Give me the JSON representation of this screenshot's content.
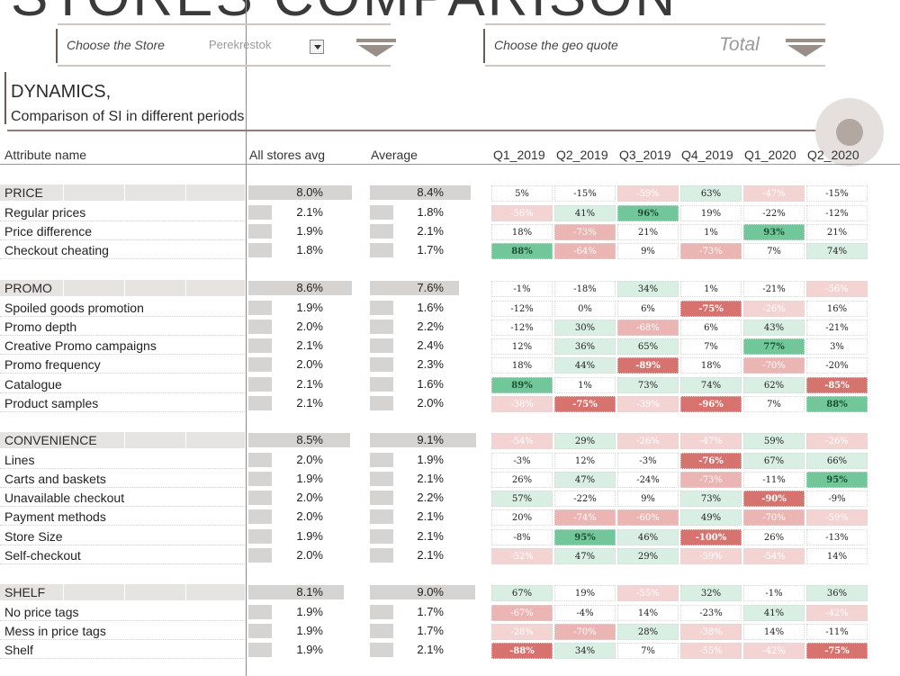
{
  "title": "STORES COMPARISON",
  "store_selector": {
    "label": "Choose the Store",
    "value": "Perekrestok"
  },
  "geo_selector": {
    "label": "Choose the geo quote",
    "value": "Total"
  },
  "heading": {
    "line1": "DYNAMICS,",
    "line2": "Comparison of SI in different periods"
  },
  "columns": {
    "attribute": "Attribute name",
    "all_stores": "All stores avg",
    "average": "Average",
    "periods": [
      "Q1_2019",
      "Q2_2019",
      "Q3_2019",
      "Q4_2019",
      "Q1_2020",
      "Q2_2020"
    ]
  },
  "colors": {
    "strong_neg": "#d6736f",
    "mid_neg": "#eab5b3",
    "light_neg": "#f3d4d3",
    "light_pos": "#d9efe4",
    "mid_pos": "#a9dbc0",
    "strong_pos": "#72c79a",
    "section_bg": "#e6e3e3",
    "bar": "#d6d3d3"
  },
  "sections": [
    {
      "name": "PRICE",
      "all": "8.0%",
      "avg": "8.4%",
      "all_level": 1.0,
      "avg_level": 0.9,
      "q": [
        "5%",
        "-15%",
        "-59%",
        "63%",
        "-47%",
        "-15%"
      ],
      "rows": [
        {
          "name": "Regular prices",
          "all": "2.1%",
          "avg": "1.8%",
          "q": [
            "-56%",
            "41%",
            "96%",
            "19%",
            "-22%",
            "-12%"
          ]
        },
        {
          "name": "Price difference",
          "all": "1.9%",
          "avg": "2.1%",
          "q": [
            "18%",
            "-73%",
            "21%",
            "1%",
            "93%",
            "21%"
          ]
        },
        {
          "name": "Checkout cheating",
          "all": "1.8%",
          "avg": "1.7%",
          "q": [
            "88%",
            "-64%",
            "9%",
            "-73%",
            "7%",
            "74%"
          ]
        }
      ]
    },
    {
      "name": "PROMO",
      "all": "8.6%",
      "avg": "7.6%",
      "all_level": 1.0,
      "avg_level": 0.8,
      "q": [
        "-1%",
        "-18%",
        "34%",
        "1%",
        "-21%",
        "-56%"
      ],
      "rows": [
        {
          "name": "Spoiled goods promotion",
          "all": "1.9%",
          "avg": "1.6%",
          "q": [
            "-12%",
            "0%",
            "6%",
            "-75%",
            "-26%",
            "16%"
          ]
        },
        {
          "name": "Promo depth",
          "all": "2.0%",
          "avg": "2.2%",
          "q": [
            "-12%",
            "30%",
            "-68%",
            "6%",
            "43%",
            "-21%"
          ]
        },
        {
          "name": "Creative Promo campaigns",
          "all": "2.1%",
          "avg": "2.4%",
          "q": [
            "12%",
            "36%",
            "65%",
            "7%",
            "77%",
            "3%"
          ]
        },
        {
          "name": "Promo frequency",
          "all": "2.0%",
          "avg": "2.3%",
          "q": [
            "18%",
            "44%",
            "-89%",
            "18%",
            "-70%",
            "-20%"
          ]
        },
        {
          "name": "Catalogue",
          "all": "2.1%",
          "avg": "1.6%",
          "q": [
            "89%",
            "1%",
            "73%",
            "74%",
            "62%",
            "-85%"
          ]
        },
        {
          "name": "Product samples",
          "all": "2.1%",
          "avg": "2.0%",
          "q": [
            "-38%",
            "-75%",
            "-39%",
            "-96%",
            "7%",
            "88%"
          ]
        }
      ]
    },
    {
      "name": "CONVENIENCE",
      "all": "8.5%",
      "avg": "9.1%",
      "all_level": 0.98,
      "avg_level": 0.95,
      "q": [
        "-54%",
        "29%",
        "-26%",
        "-47%",
        "59%",
        "-26%"
      ],
      "rows": [
        {
          "name": "Lines",
          "all": "2.0%",
          "avg": "1.9%",
          "q": [
            "-3%",
            "12%",
            "-3%",
            "-76%",
            "67%",
            "66%"
          ]
        },
        {
          "name": "Carts and baskets",
          "all": "1.9%",
          "avg": "2.1%",
          "q": [
            "26%",
            "47%",
            "-24%",
            "-73%",
            "-11%",
            "95%"
          ]
        },
        {
          "name": "Unavailable checkout",
          "all": "2.0%",
          "avg": "2.2%",
          "q": [
            "57%",
            "-22%",
            "9%",
            "73%",
            "-90%",
            "-9%"
          ]
        },
        {
          "name": "Payment methods",
          "all": "2.0%",
          "avg": "2.1%",
          "q": [
            "20%",
            "-74%",
            "-60%",
            "49%",
            "-70%",
            "-59%"
          ]
        },
        {
          "name": "Store Size",
          "all": "1.9%",
          "avg": "2.1%",
          "q": [
            "-8%",
            "95%",
            "46%",
            "-100%",
            "26%",
            "-13%"
          ]
        },
        {
          "name": "Self-checkout",
          "all": "2.0%",
          "avg": "2.1%",
          "q": [
            "-52%",
            "47%",
            "29%",
            "-59%",
            "-54%",
            "14%"
          ]
        }
      ]
    },
    {
      "name": "SHELF",
      "all": "8.1%",
      "avg": "9.0%",
      "all_level": 0.92,
      "avg_level": 0.94,
      "q": [
        "67%",
        "19%",
        "-55%",
        "32%",
        "-1%",
        "36%"
      ],
      "rows": [
        {
          "name": "No price tags",
          "all": "1.9%",
          "avg": "1.7%",
          "q": [
            "-67%",
            "-4%",
            "14%",
            "-23%",
            "41%",
            "-42%"
          ]
        },
        {
          "name": "Mess in price tags",
          "all": "1.9%",
          "avg": "1.7%",
          "q": [
            "-28%",
            "-70%",
            "28%",
            "-38%",
            "14%",
            "-11%"
          ]
        },
        {
          "name": "Shelf",
          "all": "1.9%",
          "avg": "2.1%",
          "q": [
            "-88%",
            "34%",
            "7%",
            "-55%",
            "-42%",
            "-75%"
          ]
        }
      ]
    }
  ]
}
